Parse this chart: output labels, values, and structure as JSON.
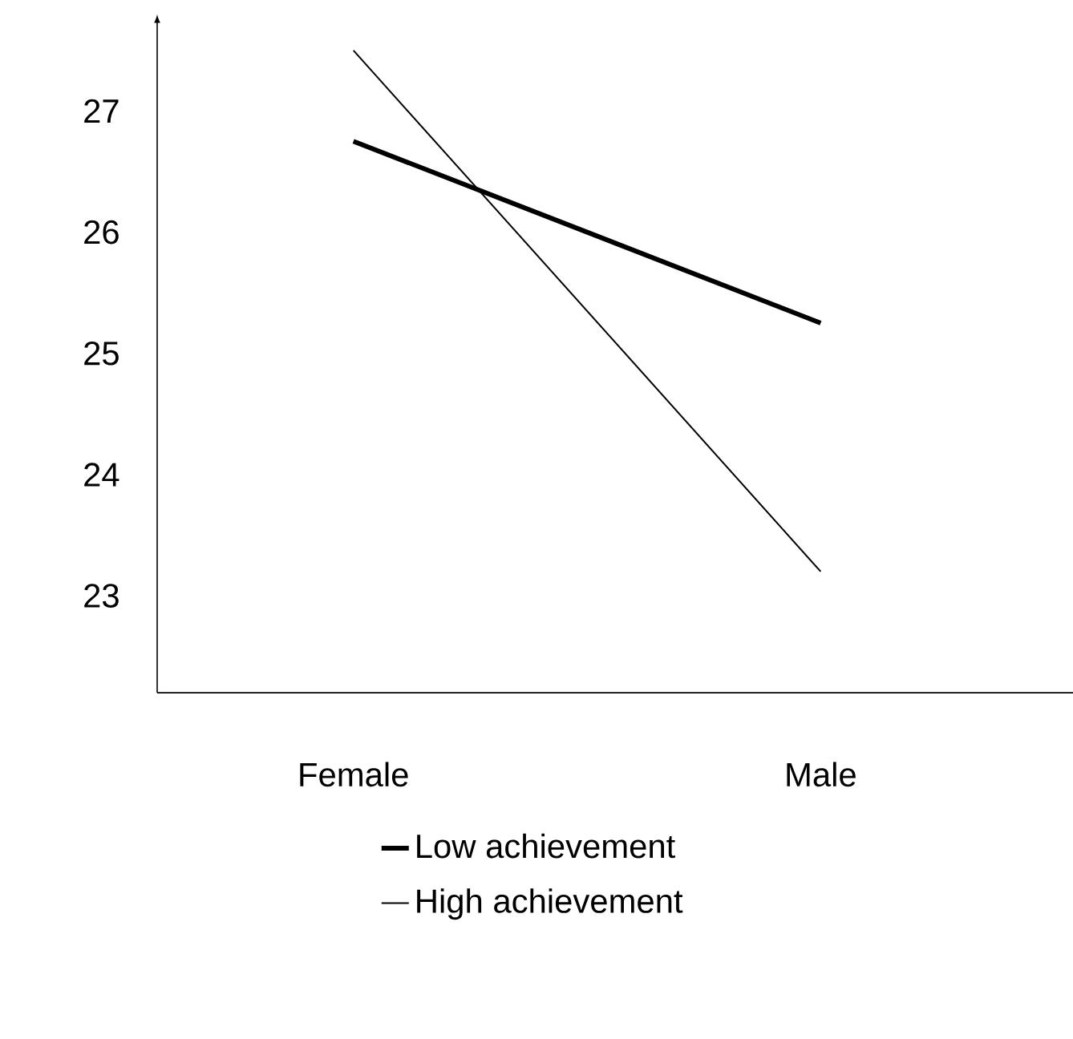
{
  "chart_data": {
    "type": "line",
    "categories": [
      "Female",
      "Male"
    ],
    "series": [
      {
        "name": "Low achievement",
        "color": "#000000",
        "values": [
          26.75,
          25.25
        ]
      },
      {
        "name": "High achievement",
        "color": "#000000",
        "values": [
          27.5,
          23.2
        ]
      }
    ],
    "ylim": [
      22.2,
      27.73
    ],
    "yticks": [
      23,
      24,
      25,
      26,
      27
    ],
    "legend": "bottom",
    "marker": "none",
    "line_style": "solid",
    "grid": false
  }
}
